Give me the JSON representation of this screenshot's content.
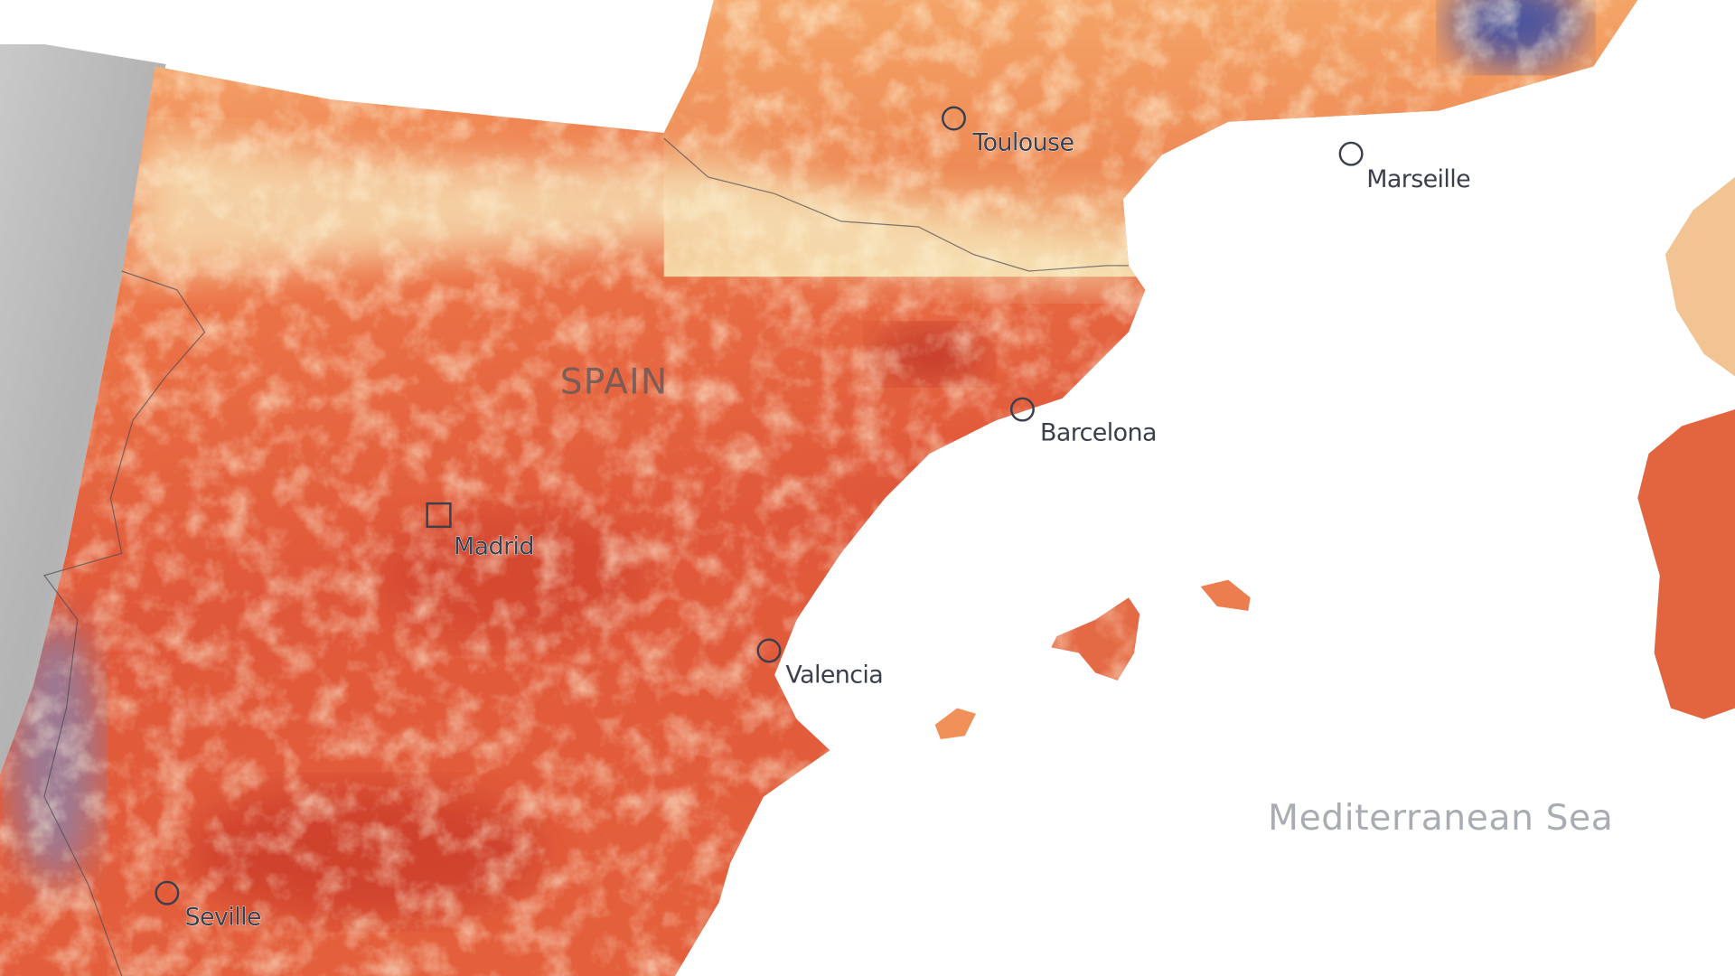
{
  "map": {
    "country": "SPAIN",
    "sea": "Mediterranean Sea",
    "cities": [
      {
        "name": "Toulouse"
      },
      {
        "name": "Marseille"
      },
      {
        "name": "Barcelona"
      },
      {
        "name": "Madrid"
      },
      {
        "name": "Valencia"
      },
      {
        "name": "Seville"
      }
    ]
  }
}
